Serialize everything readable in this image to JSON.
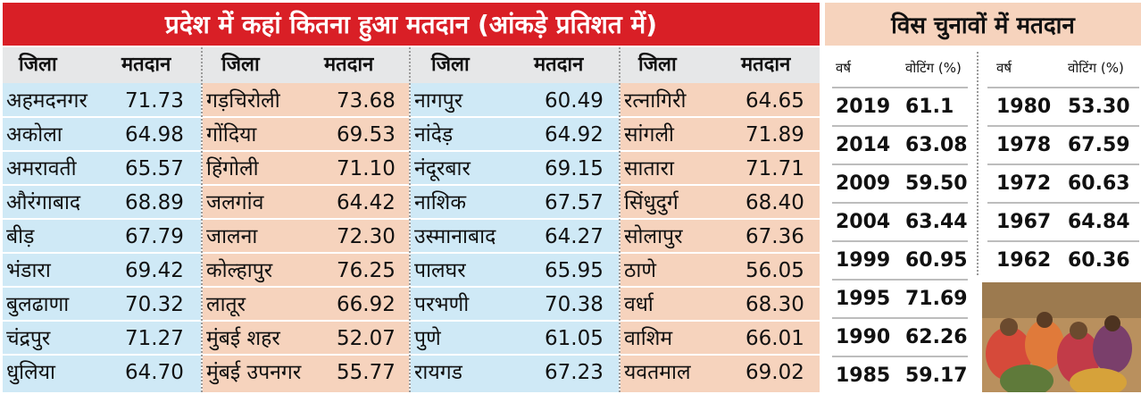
{
  "main_table": {
    "title": "प्रदेश में कहां कितना हुआ मतदान (आंकड़े प्रतिशत में)",
    "col_district": "जिला",
    "col_turnout": "मतदान",
    "columns": [
      {
        "rows": [
          {
            "district": "अहमदनगर",
            "turnout": "71.73"
          },
          {
            "district": "अकोला",
            "turnout": "64.98"
          },
          {
            "district": "अमरावती",
            "turnout": "65.57"
          },
          {
            "district": "औरंगाबाद",
            "turnout": "68.89"
          },
          {
            "district": "बीड़",
            "turnout": "67.79"
          },
          {
            "district": "भंडारा",
            "turnout": "69.42"
          },
          {
            "district": "बुलढाणा",
            "turnout": "70.32"
          },
          {
            "district": "चंद्रपुर",
            "turnout": "71.27"
          },
          {
            "district": "धुलिया",
            "turnout": "64.70"
          }
        ]
      },
      {
        "rows": [
          {
            "district": "गड़चिरोली",
            "turnout": "73.68"
          },
          {
            "district": "गोंदिया",
            "turnout": "69.53"
          },
          {
            "district": "हिंगोली",
            "turnout": "71.10"
          },
          {
            "district": "जलगांव",
            "turnout": "64.42"
          },
          {
            "district": "जालना",
            "turnout": "72.30"
          },
          {
            "district": "कोल्हापुर",
            "turnout": "76.25"
          },
          {
            "district": "लातूर",
            "turnout": "66.92"
          },
          {
            "district": "मुंबई शहर",
            "turnout": "52.07"
          },
          {
            "district": "मुंबई उपनगर",
            "turnout": "55.77"
          }
        ]
      },
      {
        "rows": [
          {
            "district": "नागपुर",
            "turnout": "60.49"
          },
          {
            "district": "नांदेड़",
            "turnout": "64.92"
          },
          {
            "district": "नंदूरबार",
            "turnout": "69.15"
          },
          {
            "district": "नाशिक",
            "turnout": "67.57"
          },
          {
            "district": "उस्मानाबाद",
            "turnout": "64.27"
          },
          {
            "district": "पालघर",
            "turnout": "65.95"
          },
          {
            "district": "परभणी",
            "turnout": "70.38"
          },
          {
            "district": "पुणे",
            "turnout": "61.05"
          },
          {
            "district": "रायगड",
            "turnout": "67.23"
          }
        ]
      },
      {
        "rows": [
          {
            "district": "रत्नागिरी",
            "turnout": "64.65"
          },
          {
            "district": "सांगली",
            "turnout": "71.89"
          },
          {
            "district": "सातारा",
            "turnout": "71.71"
          },
          {
            "district": "सिंधुदुर्ग",
            "turnout": "68.40"
          },
          {
            "district": "सोलापुर",
            "turnout": "67.36"
          },
          {
            "district": "ठाणे",
            "turnout": "56.05"
          },
          {
            "district": "वर्धा",
            "turnout": "68.30"
          },
          {
            "district": "वाशिम",
            "turnout": "66.01"
          },
          {
            "district": "यवतमाल",
            "turnout": "69.02"
          }
        ]
      }
    ]
  },
  "history": {
    "title": "विस चुनावों में मतदान",
    "col_year": "वर्ष",
    "col_voting": "वोटिंग (%)",
    "left": [
      {
        "year": "2019",
        "value": "61.1"
      },
      {
        "year": "2014",
        "value": "63.08"
      },
      {
        "year": "2009",
        "value": "59.50"
      },
      {
        "year": "2004",
        "value": "63.44"
      },
      {
        "year": "1999",
        "value": "60.95"
      },
      {
        "year": "1995",
        "value": "71.69"
      },
      {
        "year": "1990",
        "value": "62.26"
      },
      {
        "year": "1985",
        "value": "59.17"
      }
    ],
    "right": [
      {
        "year": "1980",
        "value": "53.30"
      },
      {
        "year": "1978",
        "value": "67.59"
      },
      {
        "year": "1972",
        "value": "60.63"
      },
      {
        "year": "1967",
        "value": "64.84"
      },
      {
        "year": "1962",
        "value": "60.36"
      }
    ]
  },
  "colors": {
    "banner": "#d91f26",
    "blue": "#cfe9f6",
    "peach": "#f6d3bd"
  }
}
